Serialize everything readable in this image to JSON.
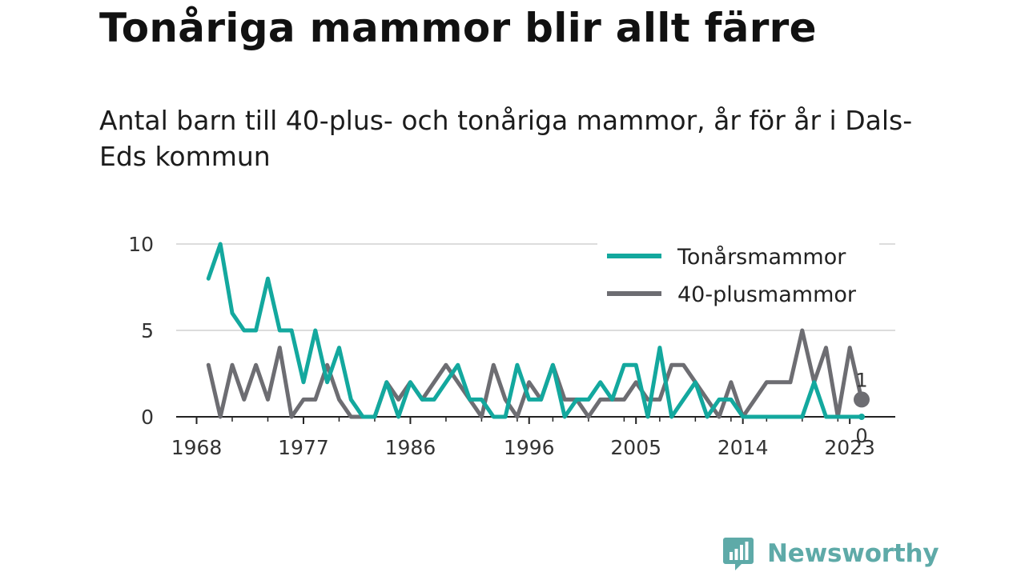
{
  "title": "Tonåriga mammor blir allt färre",
  "subtitle": "Antal barn till 40-plus- och tonåriga mammor, år för år i Dals-Eds kommun",
  "brand": {
    "name": "Newsworthy",
    "color": "#5eaaa8"
  },
  "chart_data": {
    "type": "line",
    "x": [
      1969,
      1970,
      1971,
      1972,
      1973,
      1974,
      1975,
      1976,
      1977,
      1978,
      1979,
      1980,
      1981,
      1982,
      1983,
      1984,
      1985,
      1986,
      1987,
      1988,
      1989,
      1990,
      1991,
      1992,
      1993,
      1994,
      1995,
      1996,
      1997,
      1998,
      1999,
      2000,
      2001,
      2002,
      2003,
      2004,
      2005,
      2006,
      2007,
      2008,
      2009,
      2010,
      2011,
      2012,
      2013,
      2014,
      2015,
      2016,
      2017,
      2018,
      2019,
      2020,
      2021,
      2022,
      2023,
      2024
    ],
    "series": [
      {
        "name": "Tonårsmammor",
        "color": "#13a89e",
        "values": [
          8,
          10,
          6,
          5,
          5,
          8,
          5,
          5,
          2,
          5,
          2,
          4,
          1,
          0,
          0,
          2,
          0,
          2,
          1,
          1,
          2,
          3,
          1,
          1,
          0,
          0,
          3,
          1,
          1,
          3,
          0,
          1,
          1,
          2,
          1,
          3,
          3,
          0,
          4,
          0,
          1,
          2,
          0,
          1,
          1,
          0,
          0,
          0,
          0,
          0,
          0,
          2,
          0,
          0,
          0,
          0
        ]
      },
      {
        "name": "40-plusmammor",
        "color": "#6d6d72",
        "values": [
          3,
          0,
          3,
          1,
          3,
          1,
          4,
          0,
          1,
          1,
          3,
          1,
          0,
          0,
          0,
          2,
          1,
          2,
          1,
          2,
          3,
          2,
          1,
          0,
          3,
          1,
          0,
          2,
          1,
          3,
          1,
          1,
          0,
          1,
          1,
          1,
          2,
          1,
          1,
          3,
          3,
          2,
          1,
          0,
          2,
          0,
          1,
          2,
          2,
          2,
          5,
          2,
          4,
          0,
          4,
          1
        ]
      }
    ],
    "x_ticks": [
      "1968",
      "1977",
      "1986",
      "1996",
      "2005",
      "2014",
      "2023"
    ],
    "y_ticks": [
      "0",
      "5",
      "10"
    ],
    "ylim": [
      0,
      10
    ],
    "end_labels": [
      "1",
      "0"
    ],
    "legend_position": "top-right",
    "grid": "horizontal"
  }
}
